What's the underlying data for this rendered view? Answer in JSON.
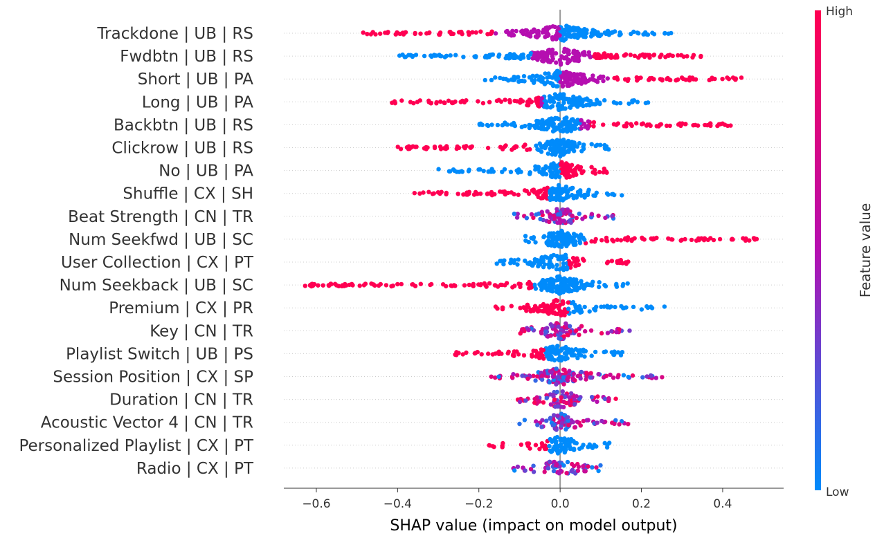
{
  "chart_data": {
    "type": "scatter",
    "subtype": "shap-beeswarm",
    "title": "",
    "xlabel": "SHAP value (impact on model output)",
    "xlim": [
      -0.68,
      0.55
    ],
    "xticks": [
      -0.6,
      -0.4,
      -0.2,
      0.0,
      0.2,
      0.4
    ],
    "xtick_labels": [
      "−0.6",
      "−0.4",
      "−0.2",
      "0.0",
      "0.2",
      "0.4"
    ],
    "grid": "horizontal dotted row guides",
    "colors": {
      "high": "#ff0052",
      "mid": "#b50fb0",
      "low": "#008bfb",
      "zero_line": "#999999"
    },
    "colorbar": {
      "label": "Feature value",
      "high_label": "High",
      "low_label": "Low",
      "placement": "right"
    },
    "features": [
      {
        "name": "Trackdone | UB | RS",
        "min": -0.49,
        "max": 0.28,
        "dense_low": [
          -0.49,
          -0.17
        ],
        "dense_high": [
          0.0,
          0.25
        ],
        "segments": [
          {
            "from": -0.49,
            "to": -0.16,
            "value": 1.0
          },
          {
            "from": 0.0,
            "to": 0.28,
            "value": 0.0
          }
        ]
      },
      {
        "name": "Fwdbtn | UB | RS",
        "min": -0.4,
        "max": 0.35,
        "segments": [
          {
            "from": -0.4,
            "to": -0.07,
            "value": 0.0
          },
          {
            "from": 0.08,
            "to": 0.35,
            "value": 1.0
          }
        ]
      },
      {
        "name": "Short | UB | PA",
        "min": -0.19,
        "max": 0.46,
        "segments": [
          {
            "from": -0.19,
            "to": 0.0,
            "value": 0.0
          },
          {
            "from": 0.13,
            "to": 0.46,
            "value": 1.0
          }
        ]
      },
      {
        "name": "Long | UB | PA",
        "min": -0.43,
        "max": 0.22,
        "segments": [
          {
            "from": -0.43,
            "to": -0.05,
            "value": 1.0
          },
          {
            "from": -0.04,
            "to": 0.22,
            "value": 0.0
          }
        ]
      },
      {
        "name": "Backbtn | UB | RS",
        "min": -0.2,
        "max": 0.42,
        "segments": [
          {
            "from": -0.2,
            "to": 0.05,
            "value": 0.0
          },
          {
            "from": 0.07,
            "to": 0.42,
            "value": 1.0
          }
        ]
      },
      {
        "name": "Clickrow | UB | RS",
        "min": -0.42,
        "max": 0.12,
        "segments": [
          {
            "from": -0.42,
            "to": -0.06,
            "value": 1.0
          },
          {
            "from": -0.06,
            "to": 0.12,
            "value": 0.0
          }
        ]
      },
      {
        "name": "No | UB | PA",
        "min": -0.31,
        "max": 0.12,
        "segments": [
          {
            "from": -0.31,
            "to": 0.0,
            "value": 0.0
          },
          {
            "from": 0.0,
            "to": 0.12,
            "value": 1.0
          }
        ]
      },
      {
        "name": "Shuffle | CX | SH",
        "min": -0.36,
        "max": 0.16,
        "segments": [
          {
            "from": -0.36,
            "to": -0.03,
            "value": 1.0
          },
          {
            "from": -0.03,
            "to": 0.16,
            "value": 0.0
          }
        ]
      },
      {
        "name": "Beat Strength | CN | TR",
        "min": -0.12,
        "max": 0.14,
        "segments": [
          {
            "from": -0.12,
            "to": 0.14,
            "value": 0.5
          }
        ]
      },
      {
        "name": "Num Seekfwd | UB | SC",
        "min": -0.11,
        "max": 0.49,
        "segments": [
          {
            "from": -0.11,
            "to": 0.06,
            "value": 0.0
          },
          {
            "from": 0.06,
            "to": 0.49,
            "value": 1.0
          }
        ]
      },
      {
        "name": "User Collection | CX | PT",
        "min": -0.16,
        "max": 0.17,
        "segments": [
          {
            "from": -0.16,
            "to": 0.02,
            "value": 0.0
          },
          {
            "from": 0.02,
            "to": 0.17,
            "value": 1.0
          }
        ]
      },
      {
        "name": "Num Seekback | UB | SC",
        "min": -0.63,
        "max": 0.18,
        "segments": [
          {
            "from": -0.63,
            "to": -0.07,
            "value": 1.0
          },
          {
            "from": -0.07,
            "to": 0.18,
            "value": 0.0
          }
        ]
      },
      {
        "name": "Premium | CX | PR",
        "min": -0.16,
        "max": 0.26,
        "segments": [
          {
            "from": -0.16,
            "to": 0.02,
            "value": 1.0
          },
          {
            "from": 0.02,
            "to": 0.26,
            "value": 0.0
          }
        ]
      },
      {
        "name": "Key | CN | TR",
        "min": -0.1,
        "max": 0.18,
        "segments": [
          {
            "from": -0.1,
            "to": 0.18,
            "value": 0.55
          }
        ]
      },
      {
        "name": "Playlist Switch | UB | PS",
        "min": -0.26,
        "max": 0.17,
        "segments": [
          {
            "from": -0.26,
            "to": -0.04,
            "value": 1.0
          },
          {
            "from": -0.04,
            "to": 0.17,
            "value": 0.0
          }
        ]
      },
      {
        "name": "Session Position | CX | SP",
        "min": -0.17,
        "max": 0.27,
        "segments": [
          {
            "from": -0.17,
            "to": 0.27,
            "value": 0.45
          }
        ]
      },
      {
        "name": "Duration | CN | TR",
        "min": -0.11,
        "max": 0.14,
        "segments": [
          {
            "from": -0.11,
            "to": 0.14,
            "value": 0.6
          }
        ]
      },
      {
        "name": "Acoustic Vector 4 | CN | TR",
        "min": -0.1,
        "max": 0.17,
        "segments": [
          {
            "from": -0.1,
            "to": 0.17,
            "value": 0.45
          }
        ]
      },
      {
        "name": "Personalized Playlist | CX | PT",
        "min": -0.18,
        "max": 0.13,
        "segments": [
          {
            "from": -0.18,
            "to": -0.03,
            "value": 1.0
          },
          {
            "from": -0.03,
            "to": 0.13,
            "value": 0.0
          }
        ]
      },
      {
        "name": "Radio | CX | PT",
        "min": -0.12,
        "max": 0.1,
        "segments": [
          {
            "from": -0.12,
            "to": 0.1,
            "value": 0.4
          }
        ]
      }
    ]
  }
}
